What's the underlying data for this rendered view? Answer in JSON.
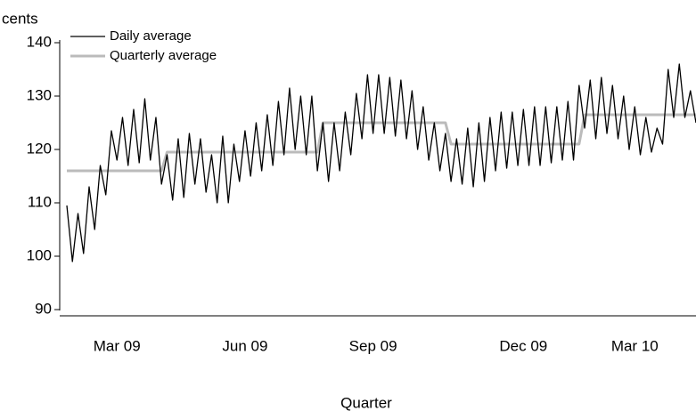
{
  "chart_data": {
    "type": "line",
    "y_label": "cents",
    "x_label": "Quarter",
    "categories": [
      null,
      null,
      null,
      null,
      null,
      null,
      null,
      null,
      null,
      "Mar 09",
      null,
      null,
      null,
      null,
      null,
      null,
      null,
      null,
      null,
      null,
      null,
      null,
      null,
      null,
      null,
      null,
      null,
      null,
      null,
      null,
      null,
      null,
      "Jun 09",
      null,
      null,
      null,
      null,
      null,
      null,
      null,
      null,
      null,
      null,
      null,
      null,
      null,
      null,
      null,
      null,
      null,
      null,
      null,
      null,
      null,
      null,
      "Sep 09",
      null,
      null,
      null,
      null,
      null,
      null,
      null,
      null,
      null,
      null,
      null,
      null,
      null,
      null,
      null,
      null,
      null,
      null,
      null,
      null,
      null,
      null,
      null,
      null,
      null,
      null,
      "Dec 09",
      null,
      null,
      null,
      null,
      null,
      null,
      null,
      null,
      null,
      null,
      null,
      null,
      null,
      null,
      null,
      null,
      null,
      null,
      null,
      "Mar 10",
      null,
      null,
      null,
      null,
      null,
      null,
      null,
      null,
      null,
      null,
      null
    ],
    "series": [
      {
        "name": "Daily average",
        "color": "#000000",
        "values": [
          109.5,
          99,
          108,
          100.5,
          113,
          105,
          117,
          111.5,
          123.5,
          118,
          126,
          117,
          127.5,
          117.5,
          129.5,
          118,
          126,
          113.5,
          119,
          110.5,
          122,
          111,
          123,
          113.5,
          122,
          112,
          119,
          110,
          122.5,
          110,
          121,
          114,
          123.5,
          115,
          125,
          116,
          126.5,
          117,
          129,
          119,
          131.5,
          120,
          130,
          119,
          130,
          116,
          125,
          114,
          125,
          116,
          127,
          119,
          130.5,
          122,
          134,
          123,
          134,
          123,
          133.5,
          122.5,
          133,
          122,
          131,
          120,
          128,
          118,
          125,
          116,
          123,
          114,
          122,
          113.5,
          124,
          113,
          125,
          114,
          126,
          116,
          127,
          116.5,
          127,
          117,
          127.5,
          117,
          128,
          117,
          128,
          117.5,
          128,
          118,
          129,
          118,
          132,
          124,
          133,
          122,
          133.5,
          123,
          132,
          122,
          130,
          120,
          128,
          119,
          126,
          119.5,
          124,
          121,
          135,
          126,
          136,
          126,
          131,
          125
        ]
      },
      {
        "name": "Quarterly average",
        "color": "#bbbbbb",
        "values": [
          116,
          116,
          116,
          116,
          116,
          116,
          116,
          116,
          116,
          116,
          116,
          116,
          116,
          116,
          116,
          116,
          116,
          116,
          119.5,
          119.5,
          119.5,
          119.5,
          119.5,
          119.5,
          119.5,
          119.5,
          119.5,
          119.5,
          119.5,
          119.5,
          119.5,
          119.5,
          119.5,
          119.5,
          119.5,
          119.5,
          119.5,
          119.5,
          119.5,
          119.5,
          119.5,
          119.5,
          119.5,
          119.5,
          119.5,
          119.5,
          125,
          125,
          125,
          125,
          125,
          125,
          125,
          125,
          125,
          125,
          125,
          125,
          125,
          125,
          125,
          125,
          125,
          125,
          125,
          125,
          125,
          125,
          125,
          121,
          121,
          121,
          121,
          121,
          121,
          121,
          121,
          121,
          121,
          121,
          121,
          121,
          121,
          121,
          121,
          121,
          121,
          121,
          121,
          121,
          121,
          121,
          121,
          126.5,
          126.5,
          126.5,
          126.5,
          126.5,
          126.5,
          126.5,
          126.5,
          126.5,
          126.5,
          126.5,
          126.5,
          126.5,
          126.5,
          126.5,
          126.5,
          126.5,
          126.5,
          126.5,
          126.5,
          126.5
        ]
      }
    ],
    "ylim": [
      90,
      140
    ],
    "yticks": [
      90,
      100,
      110,
      120,
      130,
      140
    ],
    "grid": false
  }
}
